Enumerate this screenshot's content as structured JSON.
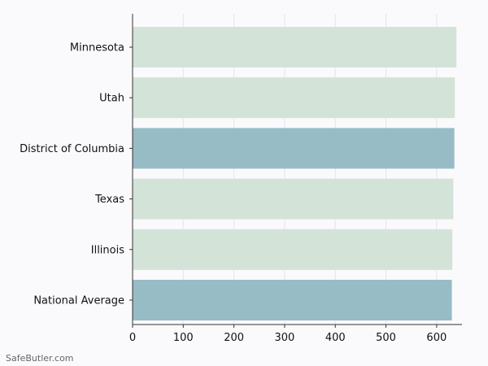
{
  "chart_data": {
    "type": "bar",
    "orientation": "horizontal",
    "categories": [
      "Minnesota",
      "Utah",
      "District of Columbia",
      "Texas",
      "Illinois",
      "National Average"
    ],
    "values": [
      639,
      636,
      635,
      633,
      631,
      630
    ],
    "xlim": [
      0,
      650
    ],
    "xticks": [
      0,
      100,
      200,
      300,
      400,
      500,
      600
    ],
    "grid": "vertical",
    "title": "",
    "xlabel": "",
    "ylabel": "",
    "colors": {
      "default": "#d4e3d8",
      "highlight": "#97bcc5",
      "grid": "#e6e6e6",
      "axis": "#333333",
      "text": "#111111"
    },
    "highlighted": [
      "District of Columbia",
      "National Average"
    ]
  },
  "watermark": "SafeButler.com"
}
